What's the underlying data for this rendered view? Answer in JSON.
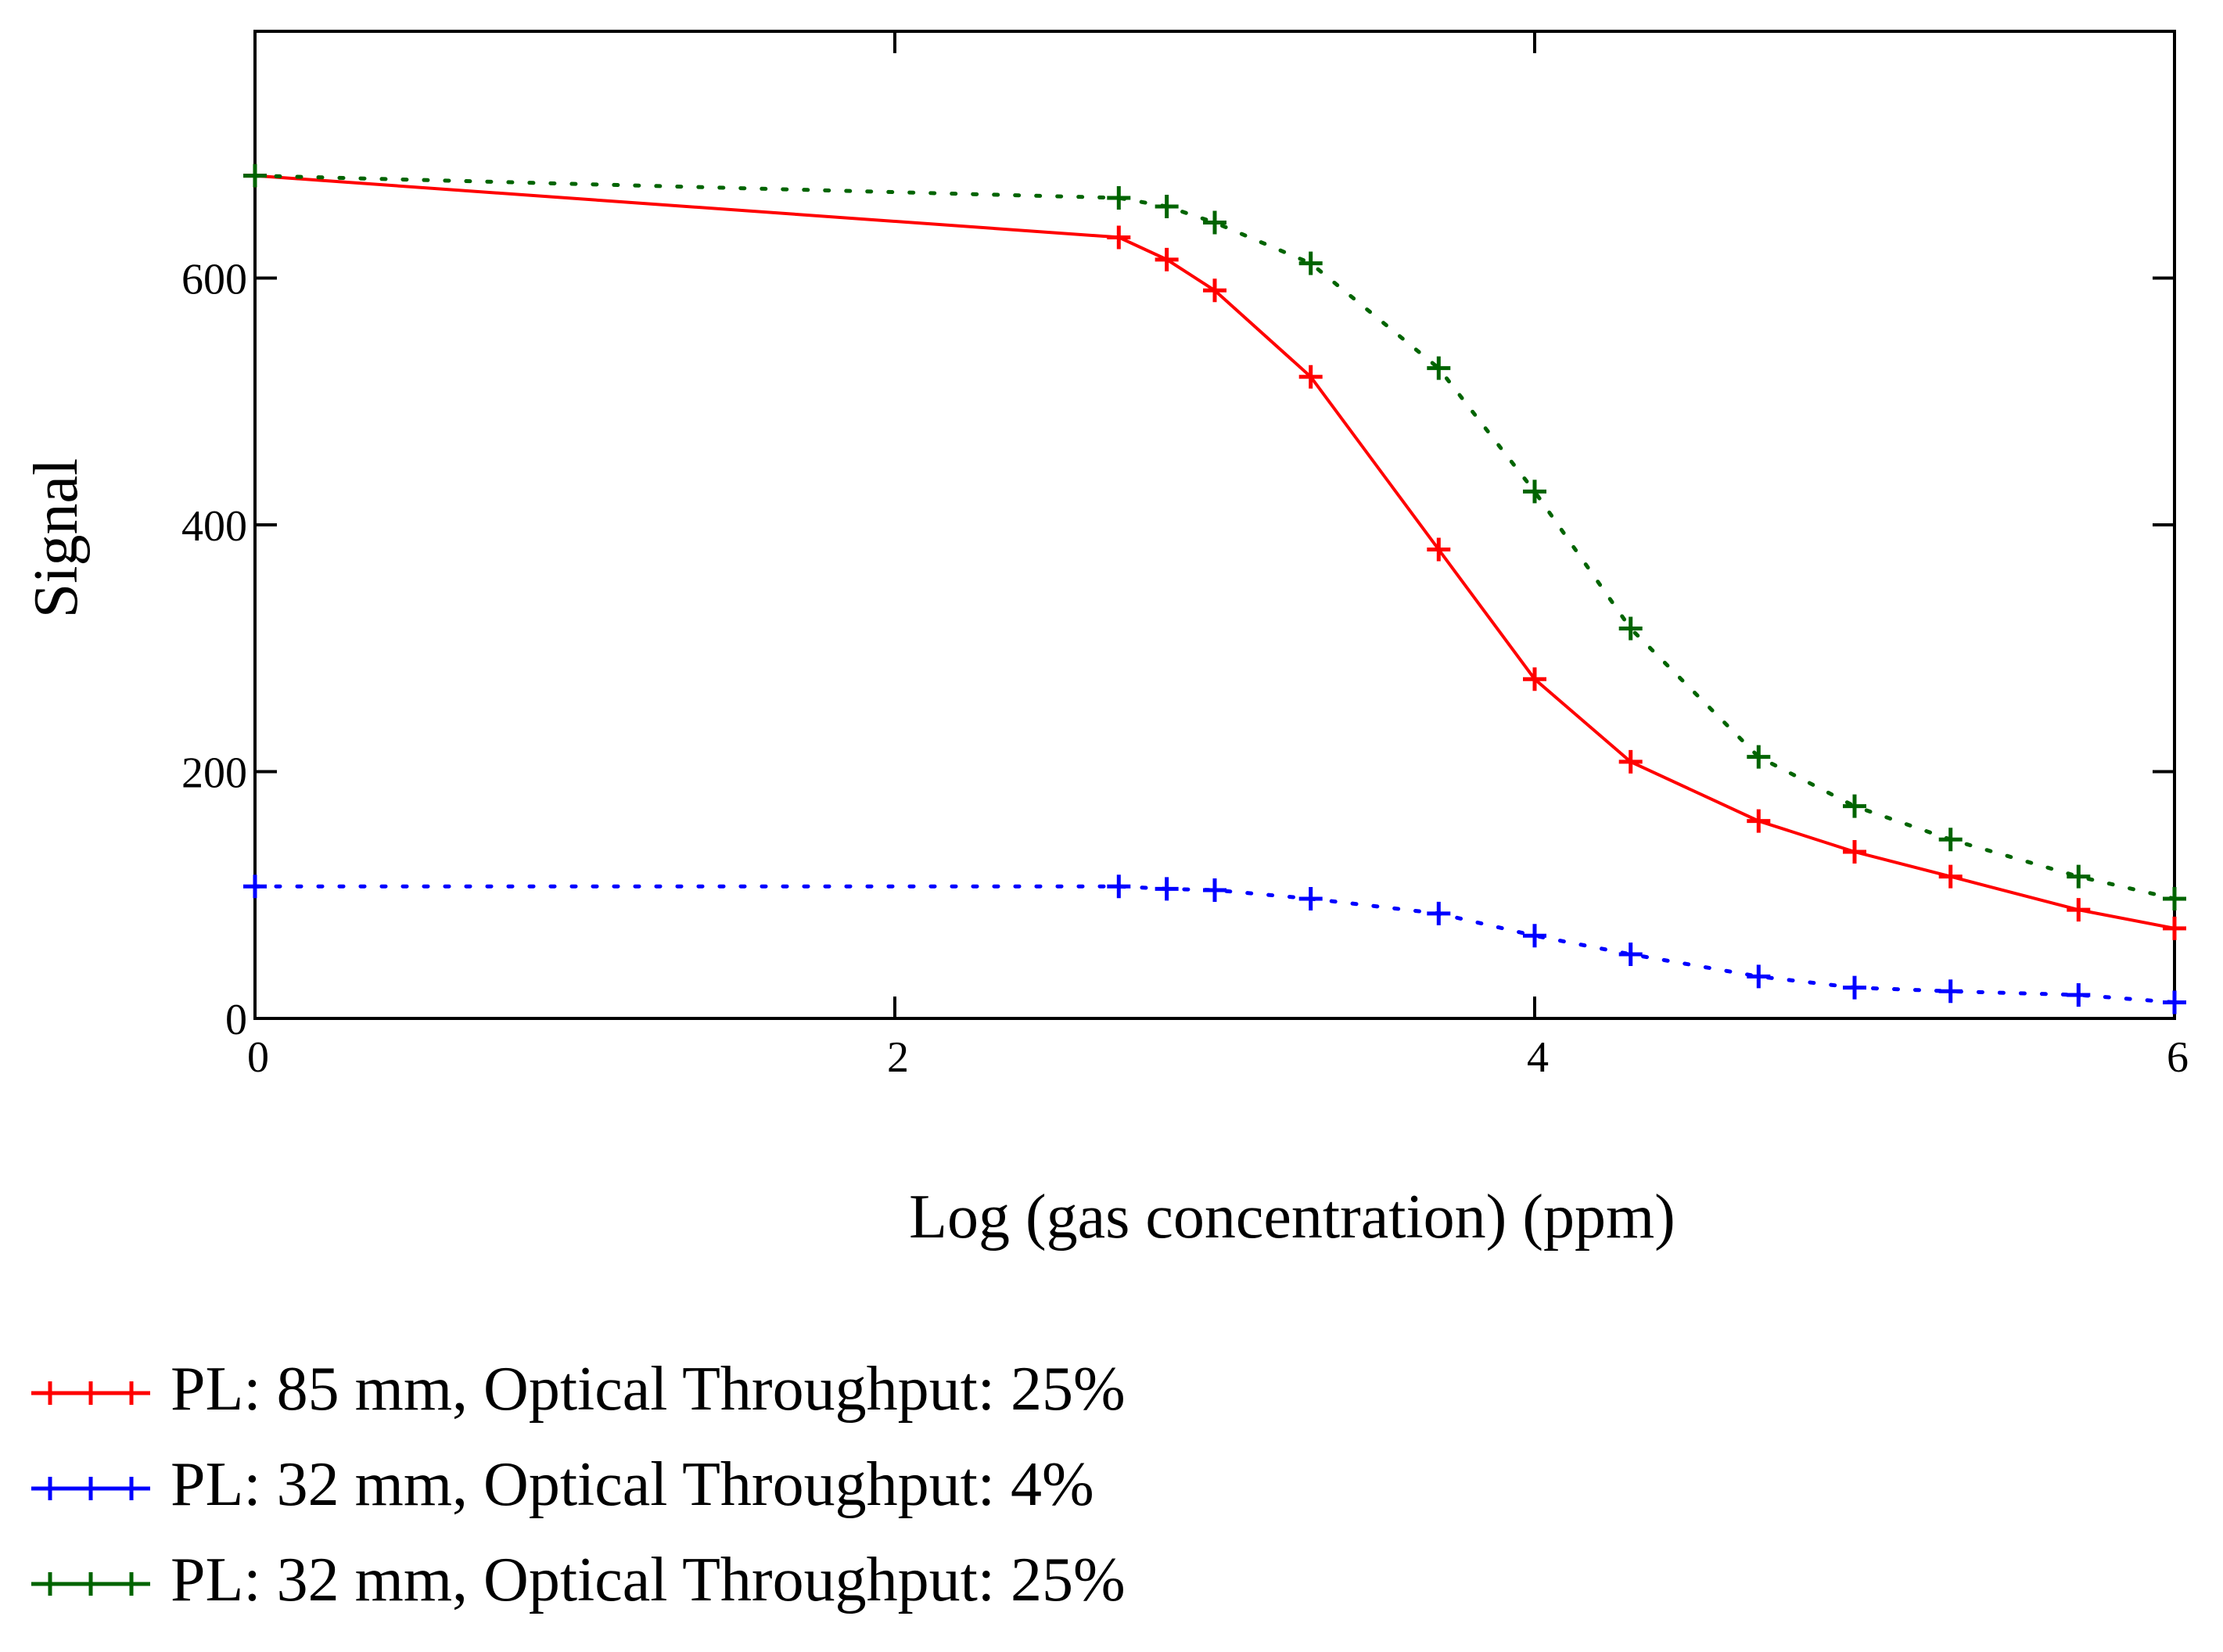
{
  "chart_data": {
    "type": "line",
    "title": "",
    "xlabel": "Log (gas concentration) (ppm)",
    "ylabel": "Signal",
    "xlim": [
      0,
      6
    ],
    "ylim": [
      0,
      800
    ],
    "xticks": [
      0,
      2,
      4,
      6
    ],
    "yticks": [
      0,
      200,
      400,
      600
    ],
    "grid": false,
    "legend_position": "bottom-left",
    "series": [
      {
        "name": "PL: 85 mm, Optical Throughput: 25%",
        "color": "#ff0000",
        "line_style": "solid",
        "marker": "plus",
        "x": [
          0,
          2.7,
          2.85,
          3.0,
          3.3,
          3.7,
          4.0,
          4.3,
          4.7,
          5.0,
          5.3,
          5.7,
          6.0
        ],
        "y": [
          683,
          633,
          615,
          590,
          520,
          380,
          275,
          208,
          160,
          135,
          115,
          88,
          73
        ]
      },
      {
        "name": "PL: 32 mm, Optical Throughput: 4%",
        "color": "#0000ff",
        "line_style": "dotted",
        "marker": "plus",
        "x": [
          0,
          2.7,
          2.85,
          3.0,
          3.3,
          3.7,
          4.0,
          4.3,
          4.7,
          5.0,
          5.3,
          5.7,
          6.0
        ],
        "y": [
          107,
          107,
          105,
          104,
          97,
          85,
          67,
          52,
          34,
          25,
          22,
          19,
          13
        ]
      },
      {
        "name": "PL: 32 mm, Optical Throughput: 25%",
        "color": "#006400",
        "line_style": "dotted",
        "marker": "plus",
        "x": [
          0,
          2.7,
          2.85,
          3.0,
          3.3,
          3.7,
          4.0,
          4.3,
          4.7,
          5.0,
          5.3,
          5.7,
          6.0
        ],
        "y": [
          683,
          665,
          658,
          645,
          612,
          527,
          427,
          316,
          212,
          172,
          145,
          115,
          97
        ]
      }
    ]
  }
}
